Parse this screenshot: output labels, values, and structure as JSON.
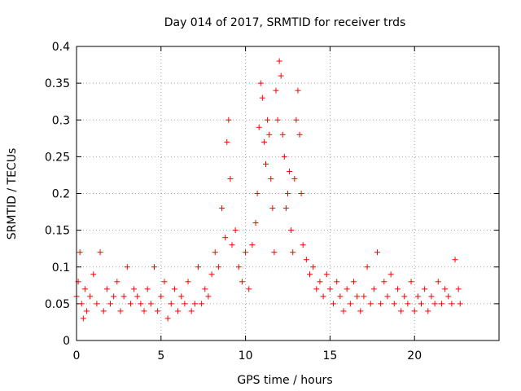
{
  "chart_data": {
    "type": "scatter",
    "title": "Day 014 of 2017, SRMTID for receiver trds",
    "xlabel": "GPS time / hours",
    "ylabel": "SRMTID / TECUs",
    "xlim": [
      0,
      25
    ],
    "ylim": [
      0,
      0.4
    ],
    "xticks": [
      "0",
      "5",
      "10",
      "15",
      "20"
    ],
    "yticks": [
      "0",
      "0.05",
      "0.1",
      "0.15",
      "0.2",
      "0.25",
      "0.3",
      "0.35",
      "0.4"
    ],
    "grid": true,
    "marker": "+",
    "color": "#ff0000",
    "series": [
      {
        "name": "SRMTID",
        "x": [
          0.0,
          0.1,
          0.2,
          0.3,
          0.4,
          0.5,
          0.6,
          0.8,
          1.0,
          1.2,
          1.4,
          1.6,
          1.8,
          2.0,
          2.2,
          2.4,
          2.6,
          2.8,
          3.0,
          3.2,
          3.4,
          3.6,
          3.8,
          4.0,
          4.2,
          4.4,
          4.6,
          4.8,
          5.0,
          5.2,
          5.4,
          5.6,
          5.8,
          6.0,
          6.2,
          6.4,
          6.6,
          6.8,
          7.0,
          7.2,
          7.4,
          7.6,
          7.8,
          8.0,
          8.2,
          8.4,
          8.6,
          8.8,
          8.9,
          9.0,
          9.1,
          9.2,
          9.4,
          9.6,
          9.8,
          10.0,
          10.2,
          10.4,
          10.6,
          10.7,
          10.8,
          10.9,
          11.0,
          11.1,
          11.2,
          11.3,
          11.4,
          11.5,
          11.6,
          11.7,
          11.8,
          11.9,
          12.0,
          12.1,
          12.2,
          12.3,
          12.4,
          12.5,
          12.6,
          12.7,
          12.8,
          12.9,
          13.0,
          13.1,
          13.2,
          13.3,
          13.4,
          13.6,
          13.8,
          14.0,
          14.2,
          14.4,
          14.6,
          14.8,
          15.0,
          15.2,
          15.4,
          15.6,
          15.8,
          16.0,
          16.2,
          16.4,
          16.6,
          16.8,
          17.0,
          17.2,
          17.4,
          17.6,
          17.8,
          18.0,
          18.2,
          18.4,
          18.6,
          18.8,
          19.0,
          19.2,
          19.4,
          19.6,
          19.8,
          20.0,
          20.2,
          20.4,
          20.6,
          20.8,
          21.0,
          21.2,
          21.4,
          21.6,
          21.8,
          22.0,
          22.2,
          22.4,
          22.6,
          22.7
        ],
        "y": [
          0.06,
          0.08,
          0.12,
          0.05,
          0.03,
          0.07,
          0.04,
          0.06,
          0.09,
          0.05,
          0.12,
          0.04,
          0.07,
          0.05,
          0.06,
          0.08,
          0.04,
          0.06,
          0.1,
          0.05,
          0.07,
          0.06,
          0.05,
          0.04,
          0.07,
          0.05,
          0.1,
          0.04,
          0.06,
          0.08,
          0.03,
          0.05,
          0.07,
          0.04,
          0.06,
          0.05,
          0.08,
          0.04,
          0.05,
          0.1,
          0.05,
          0.07,
          0.06,
          0.09,
          0.12,
          0.1,
          0.18,
          0.14,
          0.27,
          0.3,
          0.22,
          0.13,
          0.15,
          0.1,
          0.08,
          0.12,
          0.07,
          0.13,
          0.16,
          0.2,
          0.29,
          0.35,
          0.33,
          0.27,
          0.24,
          0.3,
          0.28,
          0.22,
          0.18,
          0.12,
          0.34,
          0.3,
          0.38,
          0.36,
          0.28,
          0.25,
          0.18,
          0.2,
          0.23,
          0.15,
          0.12,
          0.22,
          0.3,
          0.34,
          0.28,
          0.2,
          0.13,
          0.11,
          0.09,
          0.1,
          0.07,
          0.08,
          0.06,
          0.09,
          0.07,
          0.05,
          0.08,
          0.06,
          0.04,
          0.07,
          0.05,
          0.08,
          0.06,
          0.04,
          0.06,
          0.1,
          0.05,
          0.07,
          0.12,
          0.05,
          0.08,
          0.06,
          0.09,
          0.05,
          0.07,
          0.04,
          0.06,
          0.05,
          0.08,
          0.04,
          0.06,
          0.05,
          0.07,
          0.04,
          0.06,
          0.05,
          0.08,
          0.05,
          0.07,
          0.06,
          0.05,
          0.11,
          0.07,
          0.05
        ]
      }
    ]
  }
}
